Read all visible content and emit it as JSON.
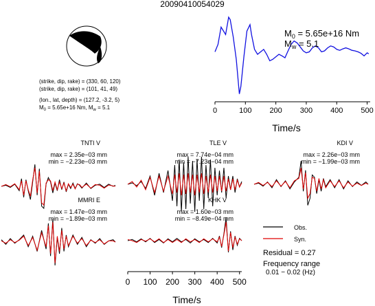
{
  "title": "20090410054029",
  "focal": {
    "lines": [
      "(strike, dip, rake) = (330, 60, 120)",
      "(strike, dip, rake) = (101, 41, 49)",
      "(lon., lat, depth) = (127.2, -3.2, 5)"
    ],
    "m0_line": {
      "m": "M",
      "sub": "0",
      "mid": " = 5.65e+16 Nm, M",
      "wsub": "w",
      "tail": " = 5.1"
    }
  },
  "stf": {
    "m0": {
      "m": "M",
      "sub": "0",
      "text": " = 5.65e+16 Nm"
    },
    "mw": {
      "m": "M",
      "sub": "w",
      "text": " = 5.1"
    }
  },
  "legend": {
    "obs": "Obs.",
    "syn": "Syn."
  },
  "residual": "Residual = 0.27",
  "freq": {
    "line1": "Frequency range",
    "line2": "0.01 − 0.02 (Hz)"
  },
  "colors": {
    "obs": "#000000",
    "syn": "#e00000",
    "stf": "#1010e0"
  },
  "chart_data": [
    {
      "type": "line",
      "panel": "source-time-function",
      "xlabel": "Time/s",
      "xlim": [
        0,
        510
      ],
      "xticks": [
        0,
        100,
        200,
        300,
        400,
        500
      ],
      "grid": false,
      "series": [
        {
          "x": [
            0,
            10,
            20,
            25,
            35,
            45,
            50,
            60,
            70,
            80,
            85,
            95,
            105,
            115,
            120,
            130,
            140,
            150,
            160,
            170,
            180,
            190,
            200,
            210,
            220,
            230,
            240,
            250,
            260,
            270,
            280,
            290,
            300,
            310,
            320,
            330,
            340,
            350,
            360,
            370,
            380,
            390,
            400,
            410,
            420,
            430,
            440,
            450,
            460,
            470,
            480,
            490,
            500,
            505
          ],
          "y": [
            0.3,
            0.45,
            0.8,
            0.75,
            0.65,
            1.0,
            0.95,
            0.6,
            0.15,
            -0.55,
            -0.4,
            0.2,
            0.72,
            0.85,
            0.65,
            0.35,
            0.25,
            0.3,
            0.35,
            0.25,
            0.12,
            0.15,
            0.2,
            0.25,
            0.22,
            0.18,
            0.32,
            0.45,
            0.52,
            0.48,
            0.4,
            0.32,
            0.28,
            0.3,
            0.38,
            0.42,
            0.38,
            0.3,
            0.32,
            0.38,
            0.42,
            0.4,
            0.35,
            0.33,
            0.36,
            0.38,
            0.36,
            0.33,
            0.32,
            0.3,
            0.27,
            0.22,
            0.28,
            0.26
          ]
        }
      ]
    },
    {
      "type": "line",
      "panel": "waveforms",
      "xlabel": "Time/s",
      "xlim": [
        0,
        510
      ],
      "xticks": [
        0,
        100,
        200,
        300,
        400,
        500
      ],
      "grid": false,
      "stations": [
        {
          "name": "TNTI V",
          "max": "max = 2.35e−03 mm",
          "min": "min = −2.23e−03 mm",
          "obs": {
            "x": [
              0,
              20,
              40,
              60,
              80,
              90,
              100,
              110,
              120,
              130,
              140,
              150,
              160,
              170,
              180,
              190,
              200,
              210,
              220,
              230,
              240,
              250,
              260,
              270,
              280,
              290,
              300,
              310,
              320,
              330,
              340,
              350,
              360,
              380,
              400,
              420,
              440,
              460,
              480,
              500,
              510
            ],
            "y": [
              0,
              0.05,
              -0.05,
              0.1,
              -0.2,
              0.35,
              -0.5,
              0.3,
              -0.2,
              -0.6,
              0.2,
              1.0,
              -0.4,
              0.8,
              -0.9,
              -1.0,
              0.1,
              0.4,
              0.2,
              -0.3,
              0.15,
              -0.2,
              0.3,
              -0.15,
              0.2,
              -0.25,
              0.1,
              -0.1,
              0.15,
              -0.1,
              0.12,
              0.05,
              -0.08,
              0.15,
              -0.1,
              0.05,
              0.1,
              -0.05,
              0.1,
              0.0,
              0.05
            ]
          },
          "syn": {
            "x": [
              0,
              20,
              40,
              60,
              80,
              90,
              100,
              110,
              120,
              130,
              140,
              150,
              160,
              170,
              180,
              190,
              200,
              210,
              220,
              230,
              240,
              250,
              260,
              270,
              280,
              290,
              300,
              310,
              320,
              330,
              340,
              350,
              360,
              380,
              400,
              420,
              440,
              460,
              480,
              500,
              510
            ],
            "y": [
              0,
              0.08,
              -0.02,
              0.12,
              -0.15,
              0.25,
              -0.4,
              0.25,
              -0.15,
              -0.45,
              0.3,
              0.85,
              -0.3,
              0.7,
              -0.75,
              -0.85,
              0.15,
              0.3,
              0.25,
              -0.2,
              0.2,
              -0.15,
              0.2,
              -0.1,
              0.15,
              -0.2,
              0.12,
              -0.05,
              0.1,
              -0.12,
              0.1,
              0.08,
              -0.05,
              0.1,
              -0.08,
              0.08,
              0.05,
              -0.08,
              0.06,
              0.02,
              0.0
            ]
          }
        },
        {
          "name": "TLE V",
          "max": "max = 7.74e−04 mm",
          "min": "min = −7.23e−04 mm",
          "obs": {
            "x": [
              0,
              20,
              40,
              60,
              80,
              100,
              120,
              140,
              160,
              180,
              200,
              210,
              220,
              230,
              240,
              250,
              260,
              270,
              280,
              290,
              300,
              310,
              320,
              330,
              340,
              350,
              360,
              370,
              380,
              390,
              400,
              410,
              420,
              430,
              440,
              450,
              460,
              470,
              480,
              490,
              500,
              510
            ],
            "y": [
              0,
              0.05,
              -0.05,
              0.1,
              -0.15,
              0.3,
              -0.4,
              0.4,
              -0.3,
              0.5,
              -0.6,
              0.7,
              -0.8,
              0.9,
              -1.0,
              0.8,
              -0.9,
              1.0,
              -0.7,
              0.85,
              -1.0,
              0.9,
              -0.6,
              1.0,
              -0.9,
              0.7,
              -0.5,
              0.9,
              -0.8,
              0.6,
              -0.4,
              0.5,
              -0.3,
              0.6,
              -0.5,
              0.3,
              -0.2,
              0.3,
              -0.3,
              0.2,
              -0.1,
              0.1
            ]
          },
          "syn": {
            "x": [
              0,
              20,
              40,
              60,
              80,
              100,
              120,
              140,
              160,
              180,
              200,
              210,
              220,
              230,
              240,
              250,
              260,
              270,
              280,
              290,
              300,
              310,
              320,
              330,
              340,
              350,
              360,
              370,
              380,
              390,
              400,
              410,
              420,
              430,
              440,
              450,
              460,
              470,
              480,
              490,
              500,
              510
            ],
            "y": [
              0,
              0.1,
              -0.1,
              0.15,
              -0.2,
              0.25,
              -0.3,
              0.3,
              -0.25,
              0.3,
              -0.35,
              0.35,
              -0.3,
              0.4,
              -0.4,
              0.35,
              -0.35,
              0.4,
              -0.3,
              0.35,
              -0.4,
              0.35,
              -0.3,
              0.4,
              -0.35,
              0.3,
              -0.3,
              0.35,
              -0.3,
              0.3,
              -0.25,
              0.3,
              -0.25,
              0.3,
              -0.25,
              0.2,
              -0.2,
              0.2,
              -0.2,
              0.15,
              -0.1,
              0.05
            ]
          }
        },
        {
          "name": "KDI V",
          "max": "max = 2.26e−03 mm",
          "min": "min = −1.99e−03 mm",
          "obs": {
            "x": [
              0,
              20,
              40,
              60,
              80,
              100,
              120,
              140,
              160,
              180,
              200,
              210,
              220,
              230,
              240,
              250,
              260,
              270,
              280,
              290,
              300,
              310,
              320,
              340,
              360,
              380,
              400,
              420,
              440,
              460,
              480,
              500,
              510
            ],
            "y": [
              0,
              0.05,
              -0.08,
              0.1,
              -0.15,
              0.2,
              -0.1,
              0.15,
              -0.2,
              0.1,
              0.3,
              1.0,
              -0.3,
              0.6,
              -0.9,
              -0.6,
              0.4,
              0.3,
              -0.4,
              0.2,
              -0.3,
              0.25,
              -0.1,
              0.2,
              -0.15,
              0.2,
              -0.2,
              0.15,
              -0.1,
              0.1,
              -0.05,
              0.1,
              0.0
            ]
          },
          "syn": {
            "x": [
              0,
              20,
              40,
              60,
              80,
              100,
              120,
              140,
              160,
              180,
              200,
              210,
              220,
              230,
              240,
              250,
              260,
              270,
              280,
              290,
              300,
              310,
              320,
              340,
              360,
              380,
              400,
              420,
              440,
              460,
              480,
              500,
              510
            ],
            "y": [
              0,
              0.08,
              -0.05,
              0.08,
              -0.1,
              0.15,
              -0.08,
              0.12,
              -0.15,
              0.15,
              0.25,
              0.7,
              -0.2,
              0.5,
              -0.6,
              -0.4,
              0.3,
              0.25,
              -0.3,
              0.25,
              -0.2,
              0.2,
              -0.15,
              0.15,
              -0.1,
              0.15,
              -0.15,
              0.1,
              -0.08,
              0.05,
              -0.05,
              0.05,
              0.0
            ]
          }
        },
        {
          "name": "MMRI E",
          "max": "max = 1.47e−03 mm",
          "min": "min = −1.89e−03 mm",
          "obs": {
            "x": [
              0,
              20,
              40,
              60,
              80,
              100,
              120,
              140,
              160,
              180,
              200,
              210,
              220,
              230,
              240,
              250,
              260,
              270,
              280,
              290,
              300,
              320,
              340,
              360,
              380,
              400,
              420,
              440,
              460,
              480,
              500,
              510
            ],
            "y": [
              0.1,
              -0.1,
              0.15,
              -0.05,
              0.1,
              0.3,
              -0.2,
              0.25,
              -0.4,
              0.5,
              -0.3,
              0.8,
              -0.6,
              1.0,
              -1.0,
              0.2,
              -0.5,
              0.6,
              -0.4,
              0.3,
              -0.2,
              0.3,
              -0.1,
              0.2,
              -0.2,
              0.1,
              -0.05,
              0.15,
              -0.1,
              0.05,
              0.1,
              0.0
            ]
          },
          "syn": {
            "x": [
              0,
              20,
              40,
              60,
              80,
              100,
              120,
              140,
              160,
              180,
              200,
              210,
              220,
              230,
              240,
              250,
              260,
              270,
              280,
              290,
              300,
              320,
              340,
              360,
              380,
              400,
              420,
              440,
              460,
              480,
              500,
              510
            ],
            "y": [
              0.05,
              -0.05,
              0.1,
              -0.02,
              0.08,
              0.25,
              -0.15,
              0.2,
              -0.35,
              0.4,
              -0.2,
              0.7,
              -0.5,
              0.85,
              -0.9,
              0.25,
              -0.4,
              0.5,
              -0.3,
              0.25,
              -0.15,
              0.25,
              -0.05,
              0.15,
              -0.15,
              0.08,
              -0.02,
              0.1,
              -0.08,
              0.05,
              0.05,
              0.0
            ]
          }
        },
        {
          "name": "KHK V",
          "max": "max = 1.60e−03 mm",
          "min": "min = −8.49e−04 mm",
          "obs": {
            "x": [
              0,
              20,
              40,
              60,
              80,
              100,
              120,
              140,
              160,
              180,
              200,
              220,
              240,
              260,
              280,
              300,
              320,
              340,
              360,
              380,
              400,
              410,
              420,
              430,
              440,
              450,
              460,
              470,
              480,
              490,
              500,
              510
            ],
            "y": [
              0,
              0.05,
              -0.05,
              0.08,
              -0.05,
              0.1,
              -0.08,
              0.05,
              -0.1,
              0.08,
              -0.05,
              0.1,
              -0.05,
              0.05,
              -0.1,
              0.08,
              -0.05,
              0.05,
              -0.08,
              0.1,
              -0.1,
              0.2,
              -0.3,
              0.3,
              1.0,
              -0.5,
              0.4,
              -0.4,
              0.2,
              -0.2,
              0.1,
              0.0
            ]
          },
          "syn": {
            "x": [
              0,
              20,
              40,
              60,
              80,
              100,
              120,
              140,
              160,
              180,
              200,
              220,
              240,
              260,
              280,
              300,
              320,
              340,
              360,
              380,
              400,
              410,
              420,
              430,
              440,
              450,
              460,
              470,
              480,
              490,
              500,
              510
            ],
            "y": [
              0.05,
              0.0,
              -0.08,
              0.05,
              -0.02,
              0.08,
              -0.05,
              0.08,
              -0.08,
              0.05,
              -0.08,
              0.05,
              -0.08,
              0.08,
              -0.05,
              0.05,
              -0.08,
              0.08,
              -0.05,
              0.08,
              -0.05,
              0.15,
              -0.25,
              0.25,
              0.8,
              -0.45,
              0.35,
              -0.3,
              0.15,
              -0.15,
              0.08,
              0.0
            ]
          }
        }
      ]
    }
  ]
}
